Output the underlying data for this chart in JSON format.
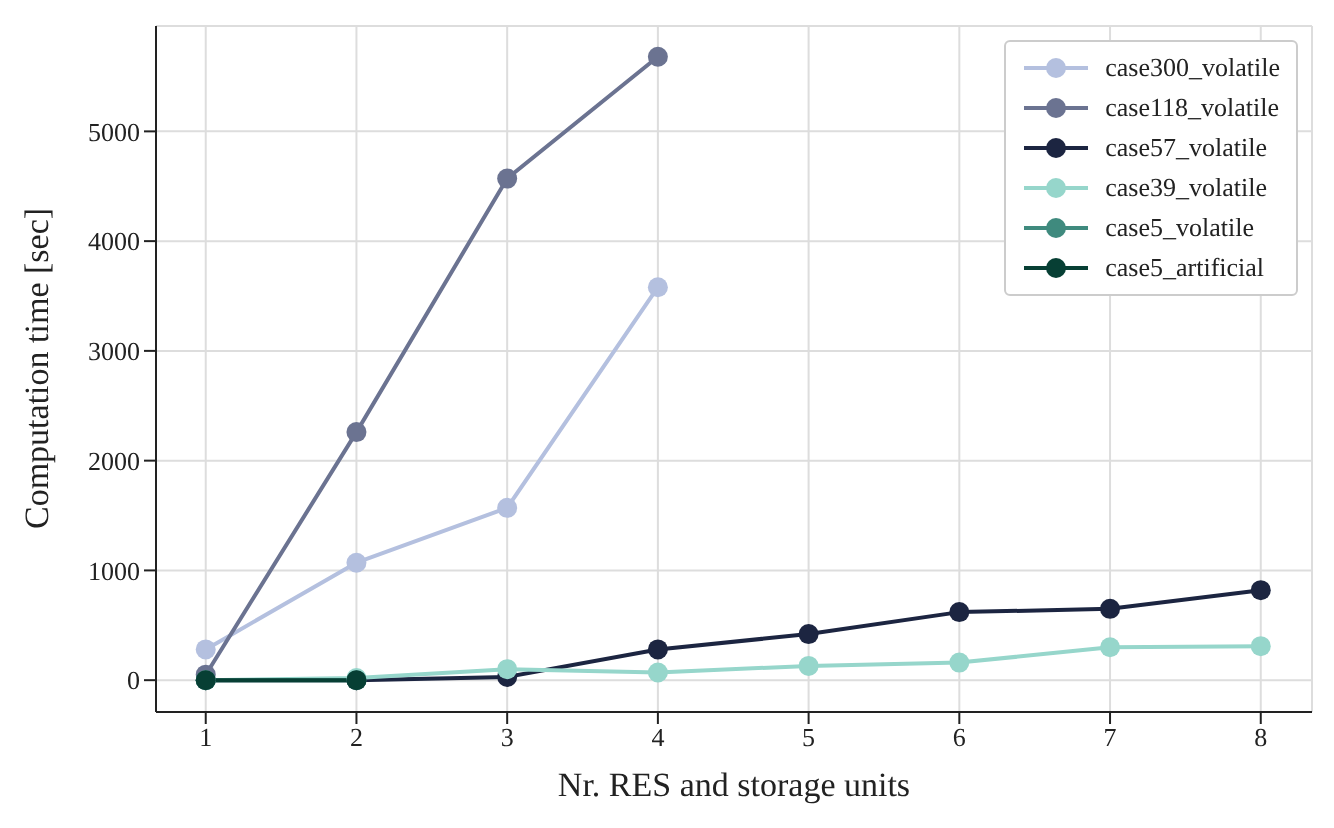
{
  "chart_data": {
    "type": "line",
    "xlabel": "Nr. RES and storage units",
    "ylabel": "Computation time [sec]",
    "x": [
      1,
      2,
      3,
      4,
      5,
      6,
      7,
      8
    ],
    "xlim": [
      0.67,
      8.34
    ],
    "xticks": [
      1,
      2,
      3,
      4,
      5,
      6,
      7,
      8
    ],
    "ylim": [
      -290,
      5960
    ],
    "yticks": [
      0,
      1000,
      2000,
      3000,
      4000,
      5000
    ],
    "grid": true,
    "legend": "top right",
    "marker": "circle",
    "line_style": "solid",
    "series": [
      {
        "name": "case300_volatile",
        "color": "#b4c0df",
        "x": [
          1,
          2,
          3,
          4
        ],
        "values": [
          280,
          1070,
          1570,
          3580
        ]
      },
      {
        "name": "case118_volatile",
        "color": "#6b7391",
        "x": [
          1,
          2,
          3,
          4
        ],
        "values": [
          50,
          2260,
          4570,
          5680
        ]
      },
      {
        "name": "case57_volatile",
        "color": "#1c2541",
        "values": [
          0,
          0,
          30,
          280,
          420,
          620,
          650,
          820
        ]
      },
      {
        "name": "case39_volatile",
        "color": "#96d6cb",
        "values": [
          0,
          20,
          100,
          70,
          130,
          160,
          300,
          310
        ]
      },
      {
        "name": "case5_volatile",
        "color": "#3f8a7e",
        "x": [
          1,
          2
        ],
        "values": [
          0,
          0
        ]
      },
      {
        "name": "case5_artificial",
        "color": "#073f34",
        "x": [
          1,
          2
        ],
        "values": [
          0,
          0
        ]
      }
    ]
  }
}
